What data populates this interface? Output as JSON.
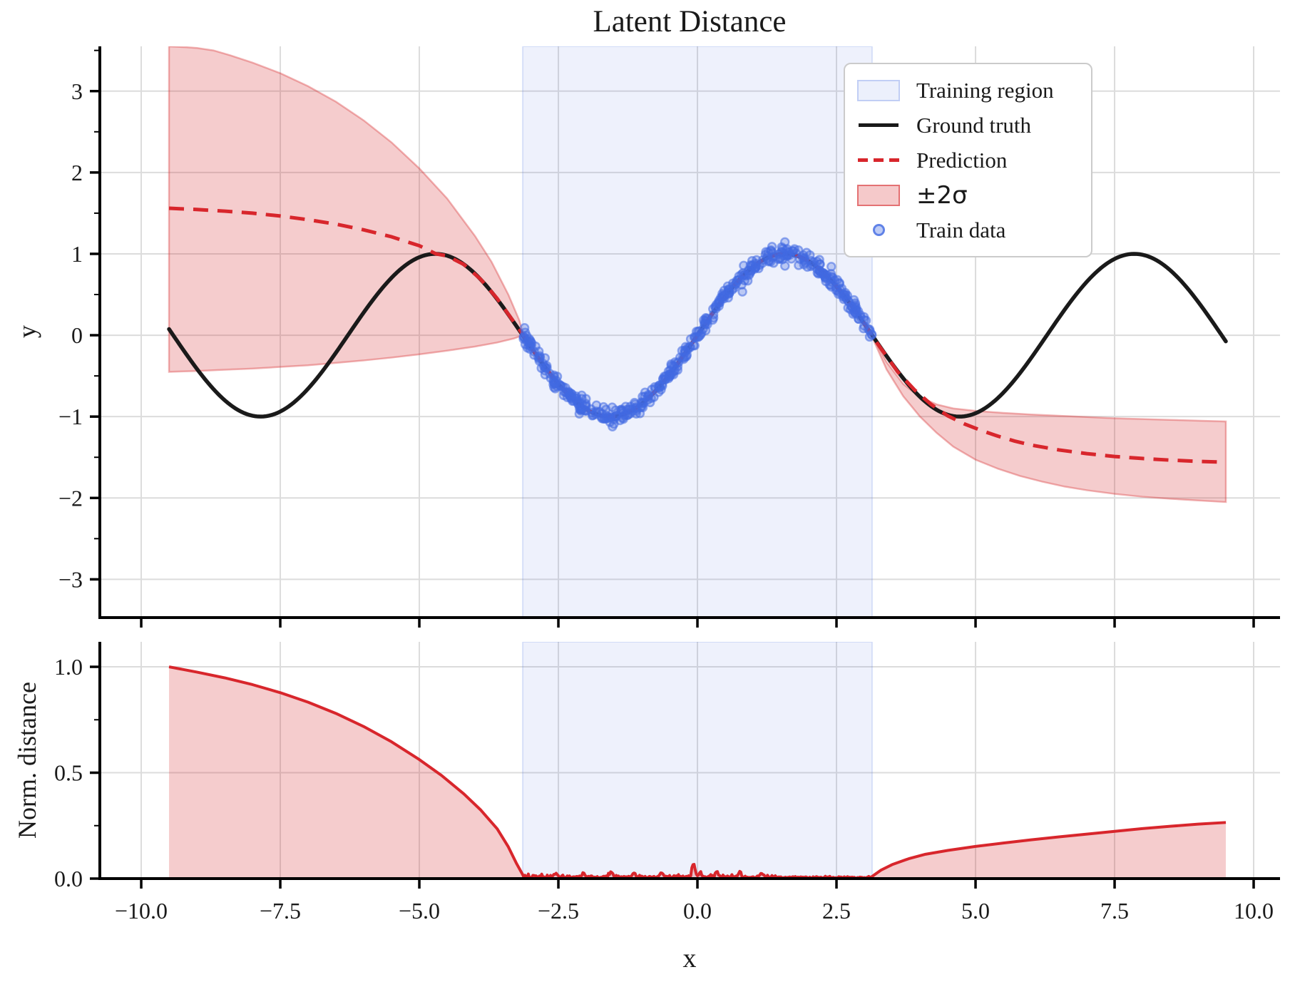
{
  "figure": {
    "title": "Latent Distance",
    "background": "#ffffff"
  },
  "colors": {
    "red": "#d8262c",
    "red_fill": "rgba(214,40,44,0.24)",
    "red_edge": "rgba(214,40,44,0.35)",
    "black": "#1a1a1a",
    "blue": "#4169e1",
    "region_fill": "rgba(65,105,225,0.09)",
    "region_edge": "rgba(65,105,225,0.16)",
    "grid": "#dcdcdc",
    "spine": "#000000"
  },
  "legend": {
    "items": [
      {
        "label": "Training region",
        "swatch": "region"
      },
      {
        "label": "Ground truth",
        "swatch": "black-line"
      },
      {
        "label": "Prediction",
        "swatch": "red-dash"
      },
      {
        "label": "±2σ",
        "swatch": "red-patch"
      },
      {
        "label": "Train data",
        "swatch": "blue-dot"
      }
    ]
  },
  "chart_data": [
    {
      "id": "top",
      "type": "line",
      "title": "Latent Distance",
      "ylabel": "y",
      "xlim": [
        -10.744,
        10.474
      ],
      "ylim": [
        -3.47,
        3.55
      ],
      "grid": true,
      "x_major_ticks": [
        -10,
        -7.5,
        -5,
        -2.5,
        0,
        2.5,
        5,
        7.5,
        10
      ],
      "y_major_ticks": [
        -3,
        -2,
        -1,
        0,
        1,
        2,
        3
      ],
      "y_tick_labels": [
        "−3",
        "−2",
        "−1",
        "0",
        "1",
        "2",
        "3"
      ],
      "y_minor_step": 0.5,
      "training_region": {
        "x0": -3.14159,
        "x1": 3.14159
      },
      "ground_truth": {
        "label": "Ground truth",
        "fn": "sin",
        "x_range": [
          -9.5,
          9.5
        ],
        "step": 0.05
      },
      "prediction": {
        "label": "Prediction",
        "dashed": true,
        "follows_sin_between": [
          -3.14,
          3.14
        ],
        "left": [
          [
            -9.5,
            1.56
          ],
          [
            -9,
            1.545
          ],
          [
            -8.5,
            1.525
          ],
          [
            -8,
            1.5
          ],
          [
            -7.5,
            1.465
          ],
          [
            -7,
            1.42
          ],
          [
            -6.5,
            1.365
          ],
          [
            -6,
            1.295
          ],
          [
            -5.5,
            1.21
          ],
          [
            -5,
            1.1
          ],
          [
            -4.7,
            1.0
          ],
          [
            -4.5,
            0.975
          ],
          [
            -4.2,
            0.87
          ],
          [
            -3.9,
            0.69
          ],
          [
            -3.6,
            0.45
          ],
          [
            -3.35,
            0.21
          ],
          [
            -3.14,
            0.01
          ]
        ],
        "right": [
          [
            3.14,
            -0.01
          ],
          [
            3.35,
            -0.21
          ],
          [
            3.6,
            -0.45
          ],
          [
            3.9,
            -0.67
          ],
          [
            4.2,
            -0.85
          ],
          [
            4.5,
            -0.99
          ],
          [
            4.8,
            -1.09
          ],
          [
            5.1,
            -1.17
          ],
          [
            5.4,
            -1.24
          ],
          [
            5.7,
            -1.3
          ],
          [
            6,
            -1.35
          ],
          [
            6.5,
            -1.41
          ],
          [
            7,
            -1.455
          ],
          [
            7.5,
            -1.49
          ],
          [
            8,
            -1.515
          ],
          [
            8.5,
            -1.535
          ],
          [
            9,
            -1.55
          ],
          [
            9.5,
            -1.56
          ]
        ]
      },
      "sigma_band": {
        "label": "±2σ",
        "left": {
          "upper": [
            [
              -9.5,
              3.55
            ],
            [
              -9.2,
              3.54
            ],
            [
              -9,
              3.53
            ],
            [
              -8.7,
              3.5
            ],
            [
              -8.4,
              3.44
            ],
            [
              -8,
              3.35
            ],
            [
              -7.5,
              3.22
            ],
            [
              -7,
              3.06
            ],
            [
              -6.5,
              2.87
            ],
            [
              -6,
              2.64
            ],
            [
              -5.5,
              2.37
            ],
            [
              -5,
              2.05
            ],
            [
              -4.5,
              1.68
            ],
            [
              -4,
              1.22
            ],
            [
              -3.7,
              0.9
            ],
            [
              -3.4,
              0.5
            ],
            [
              -3.2,
              0.18
            ],
            [
              -3.14,
              0.03
            ]
          ],
          "lower": [
            [
              -9.5,
              -0.45
            ],
            [
              -9,
              -0.44
            ],
            [
              -8.5,
              -0.425
            ],
            [
              -8,
              -0.41
            ],
            [
              -7.5,
              -0.39
            ],
            [
              -7,
              -0.37
            ],
            [
              -6.5,
              -0.34
            ],
            [
              -6,
              -0.31
            ],
            [
              -5.5,
              -0.275
            ],
            [
              -5,
              -0.235
            ],
            [
              -4.5,
              -0.19
            ],
            [
              -4,
              -0.14
            ],
            [
              -3.6,
              -0.09
            ],
            [
              -3.3,
              -0.04
            ],
            [
              -3.14,
              0.0
            ]
          ]
        },
        "right": {
          "upper": [
            [
              3.14,
              0.0
            ],
            [
              3.4,
              -0.33
            ],
            [
              3.7,
              -0.6
            ],
            [
              4,
              -0.76
            ],
            [
              4.3,
              -0.85
            ],
            [
              4.6,
              -0.9
            ],
            [
              5,
              -0.93
            ],
            [
              5.5,
              -0.955
            ],
            [
              6,
              -0.975
            ],
            [
              6.5,
              -0.99
            ],
            [
              7,
              -1.005
            ],
            [
              7.5,
              -1.02
            ],
            [
              8,
              -1.03
            ],
            [
              8.5,
              -1.04
            ],
            [
              9,
              -1.05
            ],
            [
              9.5,
              -1.06
            ]
          ],
          "lower": [
            [
              3.14,
              -0.02
            ],
            [
              3.4,
              -0.42
            ],
            [
              3.7,
              -0.75
            ],
            [
              4,
              -1.0
            ],
            [
              4.3,
              -1.2
            ],
            [
              4.6,
              -1.37
            ],
            [
              5,
              -1.53
            ],
            [
              5.4,
              -1.64
            ],
            [
              5.8,
              -1.73
            ],
            [
              6.2,
              -1.8
            ],
            [
              6.6,
              -1.86
            ],
            [
              7,
              -1.905
            ],
            [
              7.5,
              -1.95
            ],
            [
              8,
              -1.985
            ],
            [
              8.5,
              -2.01
            ],
            [
              9,
              -2.03
            ],
            [
              9.5,
              -2.05
            ]
          ]
        }
      },
      "train_data": {
        "label": "Train data",
        "n": 480,
        "x_range": [
          -3.14,
          3.14
        ],
        "fn": "sin",
        "noise_sd": 0.05,
        "seed": 11
      }
    },
    {
      "id": "bottom",
      "type": "area",
      "ylabel": "Norm. distance",
      "xlabel": "x",
      "xlim": [
        -10.744,
        10.474
      ],
      "ylim": [
        0,
        1.118
      ],
      "grid": true,
      "x_major_ticks": [
        -10,
        -7.5,
        -5,
        -2.5,
        0,
        2.5,
        5,
        7.5,
        10
      ],
      "x_tick_labels": [
        "−10.0",
        "−7.5",
        "−5.0",
        "−2.5",
        "0.0",
        "2.5",
        "5.0",
        "7.5",
        "10.0"
      ],
      "y_major_ticks": [
        0,
        0.5,
        1
      ],
      "y_tick_labels": [
        "0.0",
        "0.5",
        "1.0"
      ],
      "y_minor_step": 0.25,
      "training_region": {
        "x0": -3.14159,
        "x1": 3.14159
      },
      "distance": {
        "left": [
          [
            -9.5,
            1.0
          ],
          [
            -9,
            0.975
          ],
          [
            -8.5,
            0.948
          ],
          [
            -8,
            0.916
          ],
          [
            -7.5,
            0.878
          ],
          [
            -7,
            0.833
          ],
          [
            -6.5,
            0.78
          ],
          [
            -6,
            0.718
          ],
          [
            -5.5,
            0.646
          ],
          [
            -5,
            0.562
          ],
          [
            -4.6,
            0.487
          ],
          [
            -4.2,
            0.4
          ],
          [
            -3.9,
            0.325
          ],
          [
            -3.6,
            0.235
          ],
          [
            -3.4,
            0.15
          ],
          [
            -3.25,
            0.07
          ],
          [
            -3.14,
            0.018
          ]
        ],
        "noise": {
          "x0": -3.12,
          "x1": 3.12,
          "step": 0.02,
          "base": 0.004,
          "sd": 0.006,
          "seed": 5,
          "spikes": [
            {
              "x": -0.07,
              "h": 0.062
            },
            {
              "x": -2.55,
              "h": 0.018
            },
            {
              "x": -2.05,
              "h": 0.022
            },
            {
              "x": -1.55,
              "h": 0.024
            },
            {
              "x": -1.15,
              "h": 0.02
            },
            {
              "x": -0.65,
              "h": 0.022
            },
            {
              "x": 0.05,
              "h": 0.018
            },
            {
              "x": 0.35,
              "h": 0.024
            },
            {
              "x": 0.75,
              "h": 0.02
            },
            {
              "x": 1.15,
              "h": 0.018
            }
          ]
        },
        "right": [
          [
            3.14,
            0.01
          ],
          [
            3.3,
            0.04
          ],
          [
            3.5,
            0.066
          ],
          [
            3.8,
            0.094
          ],
          [
            4.1,
            0.115
          ],
          [
            4.5,
            0.133
          ],
          [
            5,
            0.152
          ],
          [
            5.5,
            0.168
          ],
          [
            6,
            0.183
          ],
          [
            6.5,
            0.197
          ],
          [
            7,
            0.21
          ],
          [
            7.5,
            0.223
          ],
          [
            8,
            0.236
          ],
          [
            8.5,
            0.247
          ],
          [
            9,
            0.257
          ],
          [
            9.5,
            0.265
          ]
        ]
      }
    }
  ]
}
